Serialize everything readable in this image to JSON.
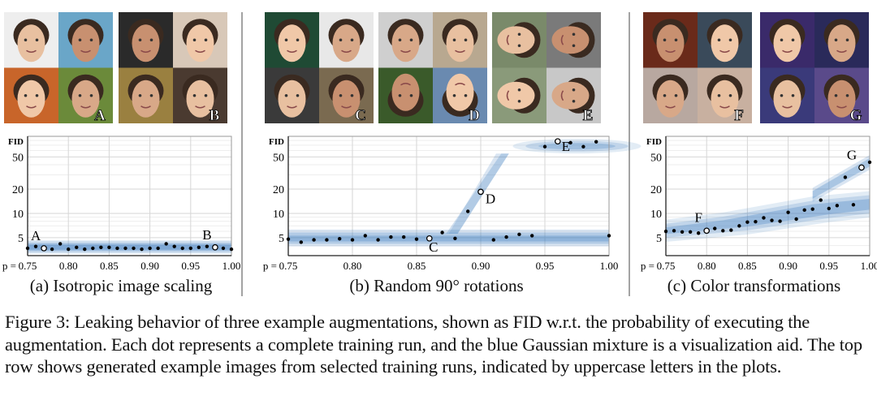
{
  "figure_caption": "Figure 3: Leaking behavior of three example augmentations, shown as FID w.r.t. the probability of executing the augmentation.  Each dot represents a complete training run, and the blue Gaussian mixture is a visualization aid. The top row shows generated example images from selected training runs, indicated by uppercase letters in the plots.",
  "image_groups": [
    {
      "label": "A",
      "tiles": [
        "#eeeeee",
        "#6aa6c8",
        "#c8652a",
        "#6b8a3a"
      ]
    },
    {
      "label": "B",
      "tiles": [
        "#2a2a2a",
        "#d8c8b8",
        "#9a8040",
        "#4a3a30"
      ]
    },
    {
      "label": "C",
      "tiles": [
        "#1f4a34",
        "#e8e8e8",
        "#3a3a3a",
        "#7a6a50"
      ]
    },
    {
      "label": "D",
      "tiles": [
        "#cfcfcf",
        "#b8a890",
        "#3a5a2a",
        "#6a8ab0"
      ]
    },
    {
      "label": "E",
      "tiles": [
        "#7a8a6a",
        "#7a7a7a",
        "#8a9a7a",
        "#c8c8c8"
      ]
    },
    {
      "label": "F",
      "tiles": [
        "#6a2a1a",
        "#3a4a5a",
        "#b8a8a0",
        "#c8b0a0"
      ]
    },
    {
      "label": "G",
      "tiles": [
        "#3a2a6a",
        "#2a2a5a",
        "#3a3a7a",
        "#5a4a8a"
      ]
    }
  ],
  "colors": {
    "band": "#3f7fbf",
    "dot": "#000000",
    "grid": "#d6d6d6"
  },
  "chart_data": [
    {
      "type": "scatter",
      "caption": "(a) Isotropic image scaling",
      "ylabel": "FID",
      "xlabel_prefix": "p = ",
      "yscale": "log",
      "ylim": [
        3,
        90
      ],
      "xlim": [
        0.75,
        1.0
      ],
      "yticks": [
        "5",
        "10",
        "20",
        "50"
      ],
      "xticks": [
        "0.75",
        "0.80",
        "0.85",
        "0.90",
        "0.95",
        "1.00"
      ],
      "x": [
        0.75,
        0.76,
        0.77,
        0.78,
        0.79,
        0.8,
        0.81,
        0.82,
        0.83,
        0.84,
        0.85,
        0.86,
        0.87,
        0.88,
        0.89,
        0.9,
        0.91,
        0.92,
        0.93,
        0.94,
        0.95,
        0.96,
        0.97,
        0.98,
        0.99,
        1.0
      ],
      "y": [
        3.7,
        3.9,
        3.7,
        3.6,
        4.2,
        3.6,
        3.8,
        3.6,
        3.7,
        3.8,
        3.8,
        3.7,
        3.7,
        3.7,
        3.6,
        3.7,
        3.7,
        4.2,
        3.9,
        3.7,
        3.7,
        3.8,
        3.9,
        3.8,
        3.7,
        3.6
      ],
      "annotations": [
        {
          "label": "A",
          "x": 0.77,
          "y": 3.7
        },
        {
          "label": "B",
          "x": 0.98,
          "y": 3.8
        }
      ]
    },
    {
      "type": "scatter",
      "caption": "(b) Random 90° rotations",
      "ylabel": "FID",
      "xlabel_prefix": "p = ",
      "yscale": "log",
      "ylim": [
        3,
        90
      ],
      "xlim": [
        0.75,
        1.0
      ],
      "yticks": [
        "5",
        "10",
        "20",
        "50"
      ],
      "xticks": [
        "0.75",
        "0.80",
        "0.85",
        "0.90",
        "0.95",
        "1.00"
      ],
      "x": [
        0.75,
        0.76,
        0.77,
        0.78,
        0.79,
        0.8,
        0.81,
        0.82,
        0.83,
        0.84,
        0.85,
        0.86,
        0.87,
        0.88,
        0.89,
        0.9,
        0.91,
        0.92,
        0.93,
        0.94,
        0.95,
        0.96,
        0.97,
        0.98,
        0.99,
        1.0
      ],
      "y": [
        4.8,
        4.4,
        4.7,
        4.7,
        4.85,
        4.7,
        5.3,
        4.7,
        5.1,
        5.1,
        4.8,
        4.9,
        5.8,
        4.9,
        10.6,
        18.5,
        4.7,
        5.1,
        5.5,
        5.3,
        67,
        78,
        75,
        67,
        77,
        5.3
      ],
      "annotations": [
        {
          "label": "C",
          "x": 0.86,
          "y": 4.9
        },
        {
          "label": "D",
          "x": 0.9,
          "y": 18.5
        },
        {
          "label": "E",
          "x": 0.96,
          "y": 78
        }
      ]
    },
    {
      "type": "scatter",
      "caption": "(c) Color transformations",
      "ylabel": "FID",
      "xlabel_prefix": "p = ",
      "yscale": "log",
      "ylim": [
        3,
        90
      ],
      "xlim": [
        0.75,
        1.0
      ],
      "yticks": [
        "5",
        "10",
        "20",
        "50"
      ],
      "xticks": [
        "0.75",
        "0.80",
        "0.85",
        "0.90",
        "0.95",
        "1.00"
      ],
      "x": [
        0.75,
        0.76,
        0.77,
        0.78,
        0.79,
        0.8,
        0.81,
        0.82,
        0.83,
        0.84,
        0.85,
        0.86,
        0.87,
        0.88,
        0.89,
        0.9,
        0.91,
        0.92,
        0.93,
        0.94,
        0.95,
        0.96,
        0.97,
        0.98,
        0.99,
        1.0
      ],
      "y": [
        6.0,
        6.1,
        5.9,
        5.9,
        5.7,
        6.1,
        6.5,
        6.1,
        6.2,
        7.0,
        7.8,
        7.9,
        8.8,
        8.2,
        8.0,
        10.3,
        8.5,
        11.0,
        11.3,
        14.6,
        11.5,
        12.5,
        28,
        12.8,
        37,
        43
      ],
      "annotations": [
        {
          "label": "F",
          "x": 0.8,
          "y": 6.1
        },
        {
          "label": "G",
          "x": 0.99,
          "y": 37
        }
      ]
    }
  ]
}
